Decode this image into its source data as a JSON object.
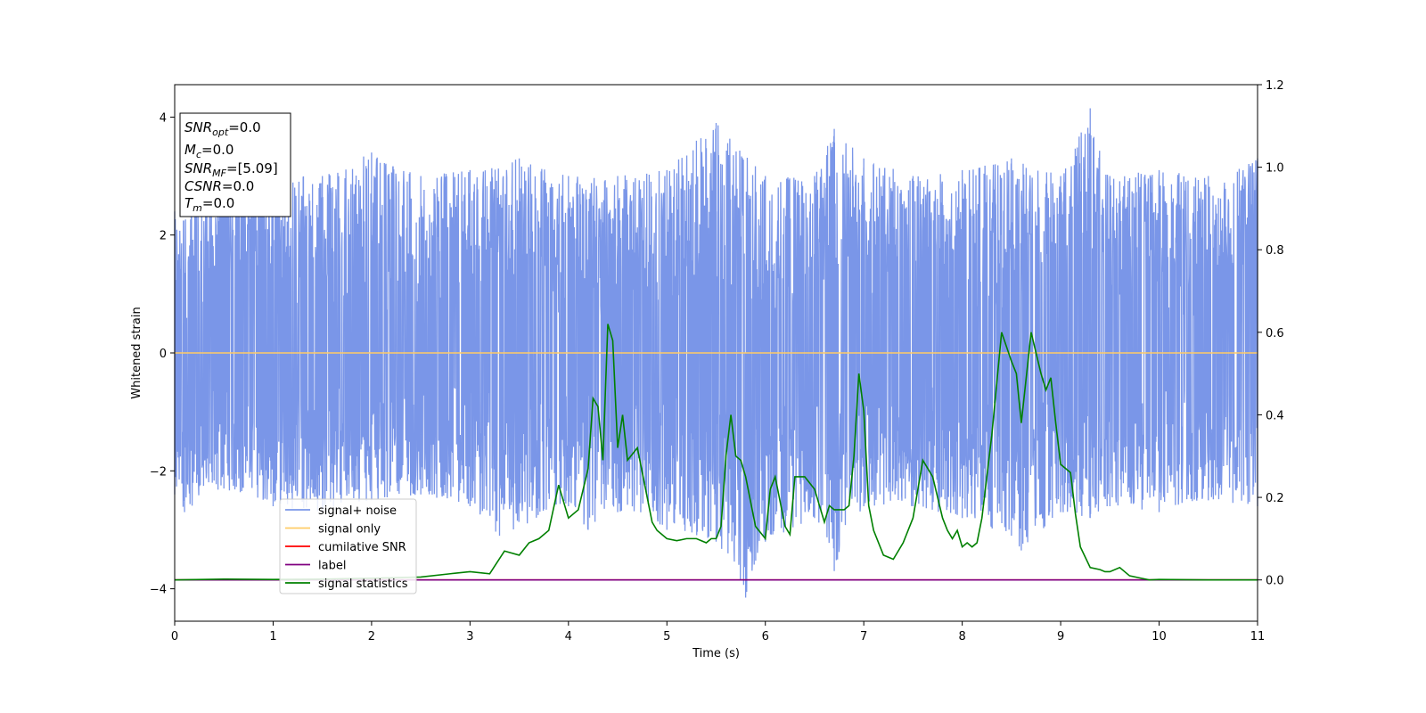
{
  "chart_data": {
    "type": "line",
    "xlabel": "Time (s)",
    "ylabel": "Whitened strain",
    "xlim": [
      0,
      11
    ],
    "ylim_left": [
      -4.55,
      4.55
    ],
    "ylim_right": [
      -0.1,
      1.2
    ],
    "x_ticks": [
      0,
      1,
      2,
      3,
      4,
      5,
      6,
      7,
      8,
      9,
      10,
      11
    ],
    "y_ticks_left": [
      -4,
      -2,
      0,
      2,
      4
    ],
    "y_ticks_right": [
      0.0,
      0.2,
      0.4,
      0.6,
      0.8,
      1.0,
      1.2
    ],
    "grid": false,
    "legend_placement": "lower-left",
    "info_box": [
      {
        "sym": "SNR",
        "sub": "opt",
        "value": "=0.0"
      },
      {
        "sym": "M",
        "sub": "c",
        "value": "=0.0"
      },
      {
        "sym": "SNR",
        "sub": "MF",
        "value": "=[5.09]"
      },
      {
        "sym": "CSNR",
        "sub": "",
        "value": "=0.0"
      },
      {
        "sym": "T",
        "sub": "m",
        "value": "=0.0"
      }
    ],
    "series": [
      {
        "name": "signal+ noise",
        "color": "#7a96e8",
        "axis": "left",
        "note_envelope": {
          "max": [
            [
              0.0,
              2.4
            ],
            [
              0.5,
              2.9
            ],
            [
              1.0,
              3.0
            ],
            [
              1.5,
              3.0
            ],
            [
              2.0,
              3.4
            ],
            [
              2.5,
              3.0
            ],
            [
              3.0,
              3.1
            ],
            [
              3.5,
              3.3
            ],
            [
              4.0,
              3.0
            ],
            [
              4.5,
              3.0
            ],
            [
              5.0,
              3.1
            ],
            [
              5.3,
              3.6
            ],
            [
              5.5,
              3.9
            ],
            [
              6.0,
              3.0
            ],
            [
              6.5,
              3.0
            ],
            [
              6.7,
              3.8
            ],
            [
              7.0,
              3.3
            ],
            [
              7.5,
              3.0
            ],
            [
              8.0,
              3.1
            ],
            [
              8.5,
              3.3
            ],
            [
              9.0,
              3.0
            ],
            [
              9.3,
              4.15
            ],
            [
              9.5,
              3.0
            ],
            [
              10.0,
              3.1
            ],
            [
              10.5,
              3.0
            ],
            [
              11.0,
              3.3
            ]
          ],
          "min": [
            [
              0.0,
              -2.4
            ],
            [
              0.1,
              -2.7
            ],
            [
              0.5,
              -2.3
            ],
            [
              1.0,
              -2.6
            ],
            [
              1.5,
              -2.7
            ],
            [
              2.0,
              -2.5
            ],
            [
              2.5,
              -2.4
            ],
            [
              3.0,
              -2.6
            ],
            [
              3.3,
              -3.1
            ],
            [
              4.0,
              -2.6
            ],
            [
              4.2,
              -3.0
            ],
            [
              4.5,
              -2.7
            ],
            [
              5.0,
              -3.0
            ],
            [
              5.5,
              -3.2
            ],
            [
              5.8,
              -4.15
            ],
            [
              6.0,
              -3.2
            ],
            [
              6.5,
              -2.8
            ],
            [
              6.7,
              -3.7
            ],
            [
              7.0,
              -2.6
            ],
            [
              7.5,
              -2.6
            ],
            [
              8.0,
              -2.8
            ],
            [
              8.5,
              -3.1
            ],
            [
              8.6,
              -3.35
            ],
            [
              9.0,
              -2.7
            ],
            [
              9.3,
              -2.8
            ],
            [
              9.5,
              -2.6
            ],
            [
              10.0,
              -2.7
            ],
            [
              10.5,
              -2.5
            ],
            [
              11.0,
              -2.6
            ]
          ]
        }
      },
      {
        "name": "signal only",
        "color": "#ffcc66",
        "axis": "left",
        "x": [
          0,
          11
        ],
        "y": [
          0,
          0
        ]
      },
      {
        "name": "cumilative SNR",
        "color": "#ff0000",
        "axis": "right",
        "x": [
          0,
          11
        ],
        "y": [
          0,
          0
        ]
      },
      {
        "name": "label",
        "color": "#800080",
        "axis": "right",
        "x": [
          0,
          11
        ],
        "y": [
          0,
          0
        ]
      },
      {
        "name": "signal statistics",
        "color": "#008000",
        "axis": "right",
        "x": [
          0.0,
          0.5,
          1.0,
          1.5,
          2.0,
          2.5,
          2.8,
          3.0,
          3.2,
          3.35,
          3.5,
          3.6,
          3.7,
          3.8,
          3.9,
          4.0,
          4.1,
          4.2,
          4.25,
          4.3,
          4.35,
          4.4,
          4.45,
          4.5,
          4.55,
          4.6,
          4.7,
          4.8,
          4.85,
          4.9,
          5.0,
          5.1,
          5.2,
          5.3,
          5.4,
          5.45,
          5.5,
          5.55,
          5.6,
          5.65,
          5.7,
          5.75,
          5.8,
          5.9,
          6.0,
          6.05,
          6.1,
          6.2,
          6.25,
          6.3,
          6.4,
          6.5,
          6.6,
          6.65,
          6.7,
          6.8,
          6.85,
          6.9,
          6.95,
          7.0,
          7.05,
          7.1,
          7.2,
          7.3,
          7.4,
          7.5,
          7.6,
          7.65,
          7.7,
          7.8,
          7.85,
          7.9,
          7.95,
          8.0,
          8.05,
          8.1,
          8.15,
          8.2,
          8.3,
          8.4,
          8.5,
          8.55,
          8.6,
          8.7,
          8.8,
          8.85,
          8.9,
          8.95,
          9.0,
          9.1,
          9.15,
          9.2,
          9.3,
          9.4,
          9.45,
          9.5,
          9.6,
          9.7,
          9.8,
          9.9,
          10.0,
          10.5,
          11.0
        ],
        "y": [
          0.0,
          0.002,
          0.001,
          0.002,
          0.004,
          0.007,
          0.015,
          0.02,
          0.015,
          0.07,
          0.06,
          0.09,
          0.1,
          0.12,
          0.23,
          0.15,
          0.17,
          0.27,
          0.44,
          0.42,
          0.29,
          0.62,
          0.58,
          0.32,
          0.4,
          0.29,
          0.32,
          0.2,
          0.14,
          0.12,
          0.1,
          0.095,
          0.1,
          0.1,
          0.09,
          0.1,
          0.1,
          0.13,
          0.3,
          0.4,
          0.3,
          0.29,
          0.25,
          0.13,
          0.1,
          0.22,
          0.25,
          0.13,
          0.11,
          0.25,
          0.25,
          0.22,
          0.14,
          0.18,
          0.17,
          0.17,
          0.18,
          0.3,
          0.5,
          0.41,
          0.18,
          0.12,
          0.06,
          0.05,
          0.09,
          0.15,
          0.29,
          0.27,
          0.25,
          0.15,
          0.12,
          0.1,
          0.12,
          0.08,
          0.09,
          0.08,
          0.09,
          0.15,
          0.35,
          0.6,
          0.53,
          0.5,
          0.38,
          0.6,
          0.5,
          0.46,
          0.49,
          0.38,
          0.28,
          0.26,
          0.16,
          0.08,
          0.03,
          0.025,
          0.02,
          0.02,
          0.03,
          0.01,
          0.005,
          0.0,
          0.001,
          0.0,
          0.0
        ]
      }
    ]
  }
}
